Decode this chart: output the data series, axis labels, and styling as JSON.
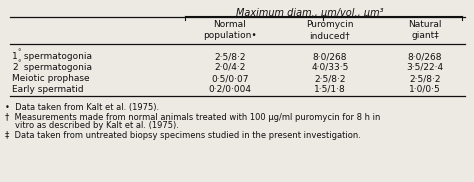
{
  "title": "Maximum diam., μm/vol., μm³",
  "col_headers": [
    "Normal\npopulation•",
    "Puromycin\ninduced†",
    "Natural\ngiant‡"
  ],
  "row_labels": [
    "1° spermatogonia",
    "2° spermatogonia",
    "Meiotic prophase",
    "Early spermatid"
  ],
  "data": [
    [
      "2·5/8·2",
      "8·0/268",
      "8·0/268"
    ],
    [
      "2·0/4·2",
      "4·0/33·5",
      "3·5/22·4"
    ],
    [
      "0·5/0·07",
      "2·5/8·2",
      "2·5/8·2"
    ],
    [
      "0·2/0·004",
      "1·5/1·8",
      "1·0/0·5"
    ]
  ],
  "footnote1": "•  Data taken from Kalt et al. (1975).",
  "footnote2a": "†  Measurements made from normal animals treated with 100 μg/ml puromycin for 8 h in",
  "footnote2b": "vitro as described by Kalt et al. (1975).",
  "footnote3": "‡  Data taken from untreated biopsy specimens studied in the present investigation.",
  "bg_color": "#edeae4",
  "text_color": "#111111",
  "fs": 6.5,
  "nfs": 6.0
}
